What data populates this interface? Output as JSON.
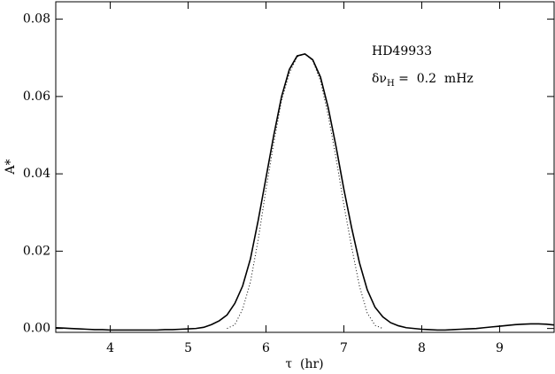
{
  "chart_data": {
    "type": "line",
    "x_label": "τ  (hr)",
    "y_label": "A*",
    "annotations": [
      "HD49933",
      {
        "main": "δν",
        "sub": "H",
        "rest": " =  0.2  mHz"
      }
    ],
    "x": [
      3.3,
      3.4,
      3.5,
      3.6,
      3.7,
      3.8,
      3.9,
      4.0,
      4.1,
      4.2,
      4.3,
      4.4,
      4.5,
      4.6,
      4.7,
      4.8,
      4.9,
      5.0,
      5.1,
      5.2,
      5.3,
      5.4,
      5.5,
      5.6,
      5.7,
      5.8,
      5.9,
      6.0,
      6.1,
      6.2,
      6.3,
      6.4,
      6.5,
      6.6,
      6.7,
      6.8,
      6.9,
      7.0,
      7.1,
      7.2,
      7.3,
      7.4,
      7.5,
      7.6,
      7.7,
      7.8,
      7.9,
      8.0,
      8.1,
      8.2,
      8.3,
      8.4,
      8.5,
      8.6,
      8.7,
      8.8,
      8.9,
      9.0,
      9.1,
      9.2,
      9.3,
      9.4,
      9.5,
      9.6,
      9.7
    ],
    "series": [
      {
        "color": "#000000",
        "dash": "none",
        "values": [
          0.0002,
          0.0001,
          0,
          -0.0001,
          -0.0002,
          -0.0003,
          -0.0003,
          -0.0004,
          -0.0004,
          -0.0004,
          -0.0004,
          -0.0004,
          -0.0004,
          -0.0004,
          -0.0003,
          -0.0003,
          -0.0002,
          -0.0001,
          0,
          0.0003,
          0.001,
          0.002,
          0.0035,
          0.0065,
          0.011,
          0.018,
          0.028,
          0.039,
          0.05,
          0.06,
          0.067,
          0.0705,
          0.071,
          0.0695,
          0.065,
          0.057,
          0.047,
          0.036,
          0.026,
          0.017,
          0.01,
          0.0055,
          0.003,
          0.0015,
          0.0007,
          0.0002,
          0,
          -0.0002,
          -0.0003,
          -0.0004,
          -0.0004,
          -0.0003,
          -0.0002,
          -0.0001,
          0,
          0.0002,
          0.0004,
          0.0006,
          0.0008,
          0.001,
          0.0011,
          0.0012,
          0.0012,
          0.0011,
          0.0009
        ]
      },
      {
        "color": "#000000",
        "dash": "1,2.5",
        "values": [
          null,
          null,
          null,
          null,
          null,
          null,
          null,
          null,
          null,
          null,
          null,
          null,
          null,
          null,
          null,
          null,
          null,
          null,
          null,
          null,
          null,
          null,
          0,
          0.001,
          0.005,
          0.012,
          0.023,
          0.036,
          0.048,
          0.059,
          0.066,
          0.0703,
          0.071,
          0.0693,
          0.064,
          0.055,
          0.044,
          0.032,
          0.021,
          0.011,
          0.004,
          0.0008,
          0,
          null,
          null,
          null,
          null,
          null,
          null,
          null,
          null,
          null,
          null,
          null,
          null,
          null,
          null,
          null,
          null,
          null,
          null,
          null,
          null,
          null,
          null
        ]
      }
    ],
    "xlim": [
      3.3,
      9.7
    ],
    "xticks": [
      4,
      5,
      6,
      7,
      8,
      9
    ],
    "ylim": [
      -0.001,
      0.0845
    ],
    "yticks": [
      {
        "value": 0,
        "label": "0.00"
      },
      0.02,
      0.04,
      0.06,
      0.08
    ]
  }
}
